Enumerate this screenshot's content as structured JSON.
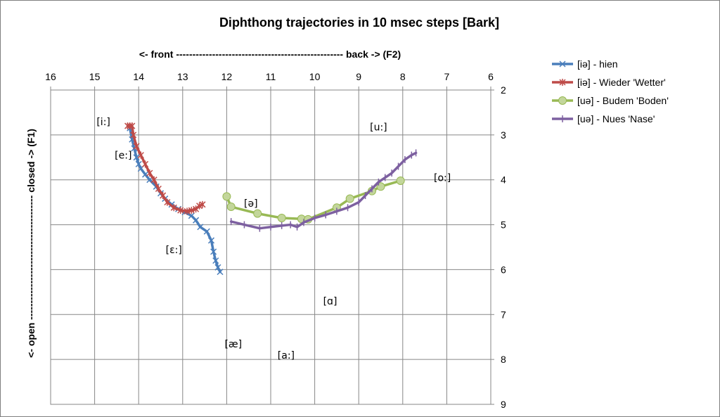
{
  "chart_data": {
    "type": "line",
    "title": "Diphthong trajectories in 10 msec steps [Bark]",
    "xlabel": "<- front --------------------------------------------------- back -> (F2)",
    "ylabel": "<- open -------------------------------------- closed -> (F1)",
    "xlim": [
      16,
      6
    ],
    "ylim": [
      9,
      2
    ],
    "x_ticks": [
      "16",
      "15",
      "14",
      "13",
      "12",
      "11",
      "10",
      "9",
      "8",
      "7",
      "6"
    ],
    "y_ticks": [
      "2",
      "3",
      "4",
      "5",
      "6",
      "7",
      "8",
      "9"
    ],
    "grid": "on",
    "legend_position": "right",
    "series": [
      {
        "name": "[iə] - hien",
        "color": "#4a7ebb",
        "marker": "x",
        "points": [
          [
            14.2,
            2.85
          ],
          [
            14.15,
            3.1
          ],
          [
            14.1,
            3.3
          ],
          [
            14.05,
            3.5
          ],
          [
            14.0,
            3.65
          ],
          [
            13.95,
            3.75
          ],
          [
            13.85,
            3.88
          ],
          [
            13.75,
            4.0
          ],
          [
            13.6,
            4.15
          ],
          [
            13.5,
            4.3
          ],
          [
            13.4,
            4.42
          ],
          [
            13.25,
            4.55
          ],
          [
            13.1,
            4.65
          ],
          [
            12.95,
            4.72
          ],
          [
            12.8,
            4.8
          ],
          [
            12.7,
            4.9
          ],
          [
            12.6,
            5.05
          ],
          [
            12.45,
            5.15
          ],
          [
            12.35,
            5.35
          ],
          [
            12.3,
            5.6
          ],
          [
            12.25,
            5.8
          ],
          [
            12.2,
            5.95
          ],
          [
            12.15,
            6.05
          ]
        ]
      },
      {
        "name": "[iə] - Wieder 'Wetter'",
        "color": "#be4b48",
        "marker": "star",
        "points": [
          [
            14.25,
            2.8
          ],
          [
            14.2,
            2.8
          ],
          [
            14.15,
            2.8
          ],
          [
            14.12,
            3.0
          ],
          [
            14.05,
            3.25
          ],
          [
            13.95,
            3.45
          ],
          [
            13.85,
            3.65
          ],
          [
            13.75,
            3.85
          ],
          [
            13.65,
            4.0
          ],
          [
            13.55,
            4.2
          ],
          [
            13.45,
            4.35
          ],
          [
            13.35,
            4.5
          ],
          [
            13.2,
            4.62
          ],
          [
            13.05,
            4.68
          ],
          [
            12.9,
            4.7
          ],
          [
            12.8,
            4.68
          ],
          [
            12.7,
            4.65
          ],
          [
            12.62,
            4.58
          ],
          [
            12.55,
            4.55
          ]
        ]
      },
      {
        "name": "[uə] - Budem 'Boden'",
        "color": "#98b954",
        "marker": "circle",
        "points": [
          [
            12.0,
            4.37
          ],
          [
            11.9,
            4.6
          ],
          [
            11.3,
            4.75
          ],
          [
            10.75,
            4.85
          ],
          [
            10.3,
            4.87
          ],
          [
            10.15,
            4.88
          ],
          [
            9.5,
            4.62
          ],
          [
            9.2,
            4.42
          ],
          [
            8.7,
            4.25
          ],
          [
            8.5,
            4.15
          ],
          [
            8.05,
            4.02
          ]
        ]
      },
      {
        "name": "[uə] - Nues 'Nase'",
        "color": "#7d60a0",
        "marker": "plus",
        "points": [
          [
            11.9,
            4.93
          ],
          [
            11.6,
            5.0
          ],
          [
            11.25,
            5.08
          ],
          [
            11.0,
            5.05
          ],
          [
            10.75,
            5.02
          ],
          [
            10.55,
            5.0
          ],
          [
            10.4,
            5.05
          ],
          [
            10.25,
            4.95
          ],
          [
            10.0,
            4.85
          ],
          [
            9.75,
            4.78
          ],
          [
            9.5,
            4.7
          ],
          [
            9.25,
            4.62
          ],
          [
            9.0,
            4.5
          ],
          [
            8.85,
            4.35
          ],
          [
            8.7,
            4.2
          ],
          [
            8.55,
            4.05
          ],
          [
            8.4,
            3.95
          ],
          [
            8.25,
            3.85
          ],
          [
            8.1,
            3.7
          ],
          [
            7.95,
            3.55
          ],
          [
            7.8,
            3.45
          ],
          [
            7.7,
            3.4
          ]
        ]
      }
    ],
    "annotations": [
      {
        "text": "[i:]",
        "x": 14.8,
        "y": 2.78
      },
      {
        "text": "[e:]",
        "x": 14.35,
        "y": 3.53
      },
      {
        "text": "[ɛ:]",
        "x": 13.2,
        "y": 5.63
      },
      {
        "text": "[ə]",
        "x": 11.45,
        "y": 4.6
      },
      {
        "text": "[u:]",
        "x": 8.55,
        "y": 2.9
      },
      {
        "text": "[o:]",
        "x": 7.1,
        "y": 4.03
      },
      {
        "text": "[ɑ]",
        "x": 9.65,
        "y": 6.78
      },
      {
        "text": "[æ]",
        "x": 11.85,
        "y": 7.73
      },
      {
        "text": "[a:]",
        "x": 10.65,
        "y": 7.98
      }
    ]
  }
}
